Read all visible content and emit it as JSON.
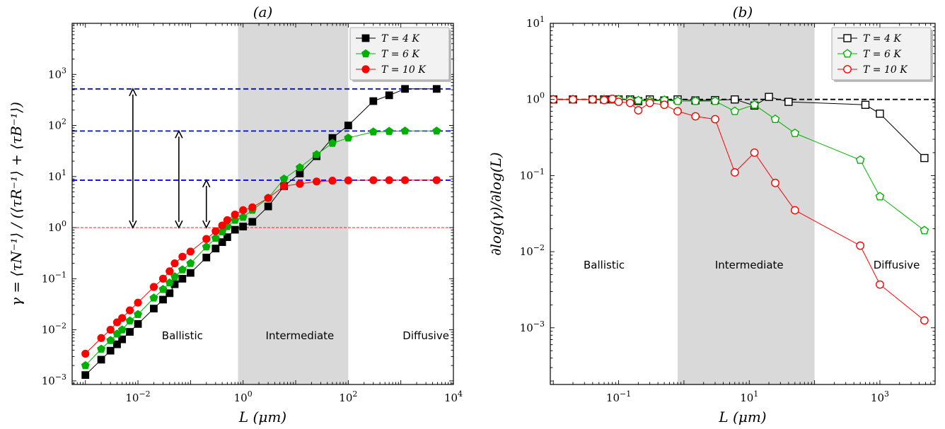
{
  "chart_data": [
    {
      "type": "line",
      "title": "(a)",
      "xlabel": "L (μm)",
      "ylabel": "γ = ⟨τN⁻¹⟩ / (⟨τR⁻¹⟩ + ⟨τB⁻¹⟩)",
      "xscale": "log",
      "yscale": "log",
      "xlim": [
        0.00056,
        10000
      ],
      "ylim": [
        0.00085,
        10000
      ],
      "xticks": [
        {
          "value": 0.01,
          "label": "10",
          "exp": "−2"
        },
        {
          "value": 1,
          "label": "10",
          "exp": "0"
        },
        {
          "value": 100,
          "label": "10",
          "exp": "2"
        },
        {
          "value": 10000,
          "label": "10",
          "exp": "4"
        }
      ],
      "yticks": [
        {
          "value": 0.001,
          "label": "10",
          "exp": "−3"
        },
        {
          "value": 0.01,
          "label": "10",
          "exp": "−2"
        },
        {
          "value": 0.1,
          "label": "10",
          "exp": "−1"
        },
        {
          "value": 1,
          "label": "10",
          "exp": "0"
        },
        {
          "value": 10,
          "label": "10",
          "exp": "1"
        },
        {
          "value": 100,
          "label": "10",
          "exp": "2"
        },
        {
          "value": 1000,
          "label": "10",
          "exp": "3"
        }
      ],
      "shaded_region": [
        0.8,
        100
      ],
      "hlines": [
        {
          "y": 520,
          "color": "#0000ff",
          "style": "dashed"
        },
        {
          "y": 78,
          "color": "#0000ff",
          "style": "dashed"
        },
        {
          "y": 8.5,
          "color": "#0000ff",
          "style": "dashed"
        },
        {
          "y": 1,
          "color": "#ff0000",
          "style": "dashed-thin"
        }
      ],
      "arrows": [
        {
          "x": 0.008,
          "y1": 1,
          "y2": 520
        },
        {
          "x": 0.06,
          "y1": 1,
          "y2": 78
        },
        {
          "x": 0.2,
          "y1": 1,
          "y2": 8.5
        }
      ],
      "regions": [
        {
          "x": 0.07,
          "y": 0.0065,
          "text": "Ballistic"
        },
        {
          "x": 12,
          "y": 0.0065,
          "text": "Intermediate"
        },
        {
          "x": 3000,
          "y": 0.0065,
          "text": "Diffusive"
        }
      ],
      "legend": "top-right",
      "series": [
        {
          "name": "T = 4 K",
          "color": "#000000",
          "marker": "square",
          "filled": true,
          "x": [
            0.001,
            0.002,
            0.003,
            0.004,
            0.005,
            0.007,
            0.01,
            0.02,
            0.03,
            0.04,
            0.05,
            0.07,
            0.1,
            0.2,
            0.3,
            0.4,
            0.5,
            0.7,
            1,
            1.5,
            3,
            6,
            12,
            25,
            50,
            100,
            300,
            600,
            1200,
            4800
          ],
          "y": [
            0.0013,
            0.0026,
            0.0039,
            0.0052,
            0.0065,
            0.0091,
            0.013,
            0.026,
            0.039,
            0.052,
            0.078,
            0.1,
            0.13,
            0.26,
            0.39,
            0.52,
            0.65,
            0.91,
            1.05,
            1.3,
            2.6,
            6.5,
            11.5,
            25,
            57,
            100,
            300,
            390,
            520,
            520
          ]
        },
        {
          "name": "T = 6 K",
          "color": "#00b000",
          "marker": "pentagon",
          "filled": true,
          "x": [
            0.001,
            0.002,
            0.003,
            0.004,
            0.005,
            0.007,
            0.01,
            0.02,
            0.03,
            0.04,
            0.05,
            0.07,
            0.1,
            0.2,
            0.3,
            0.4,
            0.5,
            0.7,
            1,
            1.5,
            3,
            6,
            12,
            25,
            50,
            100,
            300,
            600,
            1200,
            4800
          ],
          "y": [
            0.002,
            0.0042,
            0.0062,
            0.0083,
            0.01,
            0.015,
            0.02,
            0.042,
            0.062,
            0.083,
            0.11,
            0.15,
            0.2,
            0.42,
            0.62,
            0.83,
            1.05,
            1.4,
            1.6,
            2.2,
            3.8,
            9,
            15,
            27,
            45,
            57,
            75,
            77,
            78,
            78
          ]
        },
        {
          "name": "T = 10 K",
          "color": "#ff0000",
          "marker": "circle",
          "filled": true,
          "x": [
            0.001,
            0.002,
            0.003,
            0.004,
            0.005,
            0.007,
            0.01,
            0.02,
            0.03,
            0.04,
            0.05,
            0.07,
            0.1,
            0.2,
            0.3,
            0.4,
            0.5,
            0.7,
            1,
            1.5,
            3,
            6,
            12,
            25,
            50,
            100,
            300,
            600,
            1200,
            4800
          ],
          "y": [
            0.0034,
            0.0069,
            0.01,
            0.014,
            0.017,
            0.024,
            0.034,
            0.069,
            0.1,
            0.14,
            0.2,
            0.27,
            0.34,
            0.6,
            0.85,
            1.1,
            1.4,
            1.8,
            2.2,
            2.5,
            3.8,
            6.5,
            7.2,
            8,
            8.3,
            8.4,
            8.5,
            8.5,
            8.5,
            8.5
          ]
        }
      ]
    },
    {
      "type": "line",
      "title": "(b)",
      "xlabel": "L (μm)",
      "ylabel": "∂log(γ)/∂log(L)",
      "xscale": "log",
      "yscale": "log",
      "xlim": [
        0.009,
        7000
      ],
      "ylim": [
        0.00018,
        10
      ],
      "xticks": [
        {
          "value": 0.1,
          "label": "10",
          "exp": "−1"
        },
        {
          "value": 10,
          "label": "10",
          "exp": "1"
        },
        {
          "value": 1000,
          "label": "10",
          "exp": "3"
        }
      ],
      "yticks": [
        {
          "value": 0.001,
          "label": "10",
          "exp": "−3"
        },
        {
          "value": 0.01,
          "label": "10",
          "exp": "−2"
        },
        {
          "value": 0.1,
          "label": "10",
          "exp": "−1"
        },
        {
          "value": 1,
          "label": "10",
          "exp": "0"
        },
        {
          "value": 10,
          "label": "10",
          "exp": "1"
        }
      ],
      "shaded_region": [
        0.8,
        100
      ],
      "hlines": [
        {
          "y": 1,
          "color": "#000000",
          "style": "dashed"
        }
      ],
      "regions": [
        {
          "x": 0.06,
          "y": 0.006,
          "text": "Ballistic"
        },
        {
          "x": 10,
          "y": 0.006,
          "text": "Intermediate"
        },
        {
          "x": 1800,
          "y": 0.006,
          "text": "Diffusive"
        }
      ],
      "legend": "top-right",
      "series": [
        {
          "name": "T = 4 K",
          "color": "#000000",
          "marker": "square",
          "filled": false,
          "x": [
            0.01,
            0.02,
            0.04,
            0.06,
            0.08,
            0.1,
            0.15,
            0.2,
            0.3,
            0.5,
            0.8,
            1.5,
            3,
            6,
            12,
            25,
            50,
            500,
            1000,
            4800
          ],
          "y": [
            1,
            1,
            1,
            1,
            1,
            1,
            1,
            0.95,
            1,
            0.97,
            1,
            0.97,
            0.98,
            1,
            0.83,
            1.08,
            0.93,
            0.85,
            0.65,
            0.17
          ],
          "plot_x": [
            0.01,
            0.02,
            0.04,
            0.06,
            0.08,
            0.1,
            0.15,
            0.2,
            0.3,
            0.5,
            0.8,
            1.5,
            3,
            6,
            12,
            20,
            40,
            600,
            1000,
            4800
          ],
          "note": ""
        },
        {
          "name": "T = 6 K",
          "color": "#00b000",
          "marker": "pentagon",
          "filled": false,
          "x": [
            0.01,
            0.02,
            0.04,
            0.06,
            0.08,
            0.1,
            0.15,
            0.2,
            0.3,
            0.5,
            0.8,
            1.5,
            3,
            6,
            12,
            25,
            50,
            500,
            1000,
            4800
          ],
          "y": [
            1,
            1,
            1,
            1,
            1,
            1,
            0.98,
            0.97,
            0.95,
            0.98,
            0.95,
            0.95,
            0.95,
            0.7,
            0.85,
            0.55,
            0.36,
            0.16,
            0.053,
            0.019
          ]
        },
        {
          "name": "T = 10 K",
          "color": "#ff0000",
          "marker": "circle",
          "filled": false,
          "x": [
            0.01,
            0.02,
            0.04,
            0.06,
            0.08,
            0.1,
            0.15,
            0.2,
            0.3,
            0.5,
            0.8,
            1.5,
            3,
            6,
            12,
            25,
            50,
            500,
            1000,
            4800
          ],
          "y": [
            1,
            1,
            1,
            0.98,
            1.02,
            0.93,
            0.9,
            0.72,
            0.9,
            0.85,
            0.7,
            0.6,
            0.55,
            0.11,
            0.2,
            0.08,
            0.035,
            0.012,
            0.0037,
            0.00125
          ]
        }
      ]
    }
  ]
}
